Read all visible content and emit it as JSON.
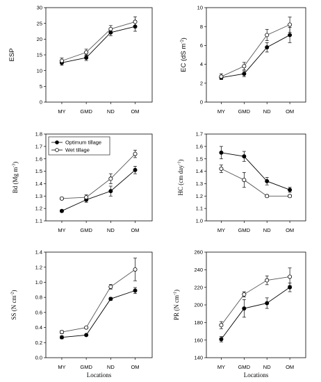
{
  "figure": {
    "x_axis_label": "Locations",
    "legend": [
      "Optimum tillage",
      "Wet tillage"
    ]
  },
  "chart_data": [
    {
      "type": "line",
      "categories": [
        "MY",
        "GMD",
        "ND",
        "OM"
      ],
      "ylabel": "ESP",
      "ylim": [
        0,
        30
      ],
      "yticks": [
        0,
        5,
        10,
        15,
        20,
        25,
        30
      ],
      "series": [
        {
          "name": "Optimum tillage",
          "values": [
            12.5,
            14.1,
            22.1,
            24.0
          ],
          "errors": [
            0.8,
            0.9,
            1.0,
            1.5
          ]
        },
        {
          "name": "Wet tillage",
          "values": [
            13.1,
            15.8,
            23.2,
            25.5
          ],
          "errors": [
            0.9,
            1.0,
            1.1,
            1.6
          ]
        }
      ]
    },
    {
      "type": "line",
      "categories": [
        "MY",
        "GMD",
        "ND",
        "OM"
      ],
      "ylabel": "EC (dS m-1)",
      "ylim": [
        0,
        10
      ],
      "yticks": [
        0,
        2,
        4,
        6,
        8,
        10
      ],
      "series": [
        {
          "name": "Optimum tillage",
          "values": [
            2.6,
            3.0,
            5.8,
            7.1
          ],
          "errors": [
            0.2,
            0.3,
            0.5,
            0.8
          ]
        },
        {
          "name": "Wet tillage",
          "values": [
            2.7,
            3.8,
            7.1,
            8.2
          ],
          "errors": [
            0.3,
            0.4,
            0.6,
            0.8
          ]
        }
      ]
    },
    {
      "type": "line",
      "categories": [
        "MY",
        "GMD",
        "ND",
        "OM"
      ],
      "ylabel": "Bd (Mg m-3)",
      "ylim": [
        1.1,
        1.8
      ],
      "yticks": [
        1.1,
        1.2,
        1.3,
        1.4,
        1.5,
        1.6,
        1.7,
        1.8
      ],
      "series": [
        {
          "name": "Optimum tillage",
          "values": [
            1.18,
            1.27,
            1.34,
            1.51
          ],
          "errors": [
            0.01,
            0.02,
            0.04,
            0.03
          ]
        },
        {
          "name": "Wet tillage",
          "values": [
            1.28,
            1.29,
            1.44,
            1.64
          ],
          "errors": [
            0.01,
            0.02,
            0.04,
            0.03
          ]
        }
      ]
    },
    {
      "type": "line",
      "categories": [
        "MY",
        "GMD",
        "ND",
        "OM"
      ],
      "ylabel": "HC (cm day-1)",
      "ylim": [
        1.0,
        1.7
      ],
      "yticks": [
        1.0,
        1.1,
        1.2,
        1.3,
        1.4,
        1.5,
        1.6,
        1.7
      ],
      "series": [
        {
          "name": "Optimum tillage",
          "values": [
            1.55,
            1.52,
            1.32,
            1.25
          ],
          "errors": [
            0.05,
            0.04,
            0.03,
            0.02
          ]
        },
        {
          "name": "Wet tillage",
          "values": [
            1.42,
            1.33,
            1.2,
            1.2
          ],
          "errors": [
            0.03,
            0.06,
            0.01,
            0.01
          ]
        }
      ]
    },
    {
      "type": "line",
      "categories": [
        "MY",
        "GMD",
        "ND",
        "OM"
      ],
      "ylabel": "SS (N cm-2)",
      "ylim": [
        0,
        1.4
      ],
      "yticks": [
        0.0,
        0.2,
        0.4,
        0.6,
        0.8,
        1.0,
        1.2,
        1.4
      ],
      "series": [
        {
          "name": "Optimum tillage",
          "values": [
            0.27,
            0.3,
            0.78,
            0.89
          ],
          "errors": [
            0.02,
            0.01,
            0.02,
            0.04
          ]
        },
        {
          "name": "Wet tillage",
          "values": [
            0.34,
            0.4,
            0.94,
            1.17
          ],
          "errors": [
            0.02,
            0.01,
            0.03,
            0.15
          ]
        }
      ]
    },
    {
      "type": "line",
      "categories": [
        "MY",
        "GMD",
        "ND",
        "OM"
      ],
      "ylabel": "PR (N cm-1)",
      "ylim": [
        140,
        260
      ],
      "yticks": [
        140,
        160,
        180,
        200,
        220,
        240,
        260
      ],
      "series": [
        {
          "name": "Optimum tillage",
          "values": [
            161,
            196,
            202,
            220
          ],
          "errors": [
            3,
            10,
            6,
            5
          ]
        },
        {
          "name": "Wet tillage",
          "values": [
            177,
            212,
            228,
            232
          ],
          "errors": [
            4,
            3,
            5,
            10
          ]
        }
      ]
    }
  ]
}
